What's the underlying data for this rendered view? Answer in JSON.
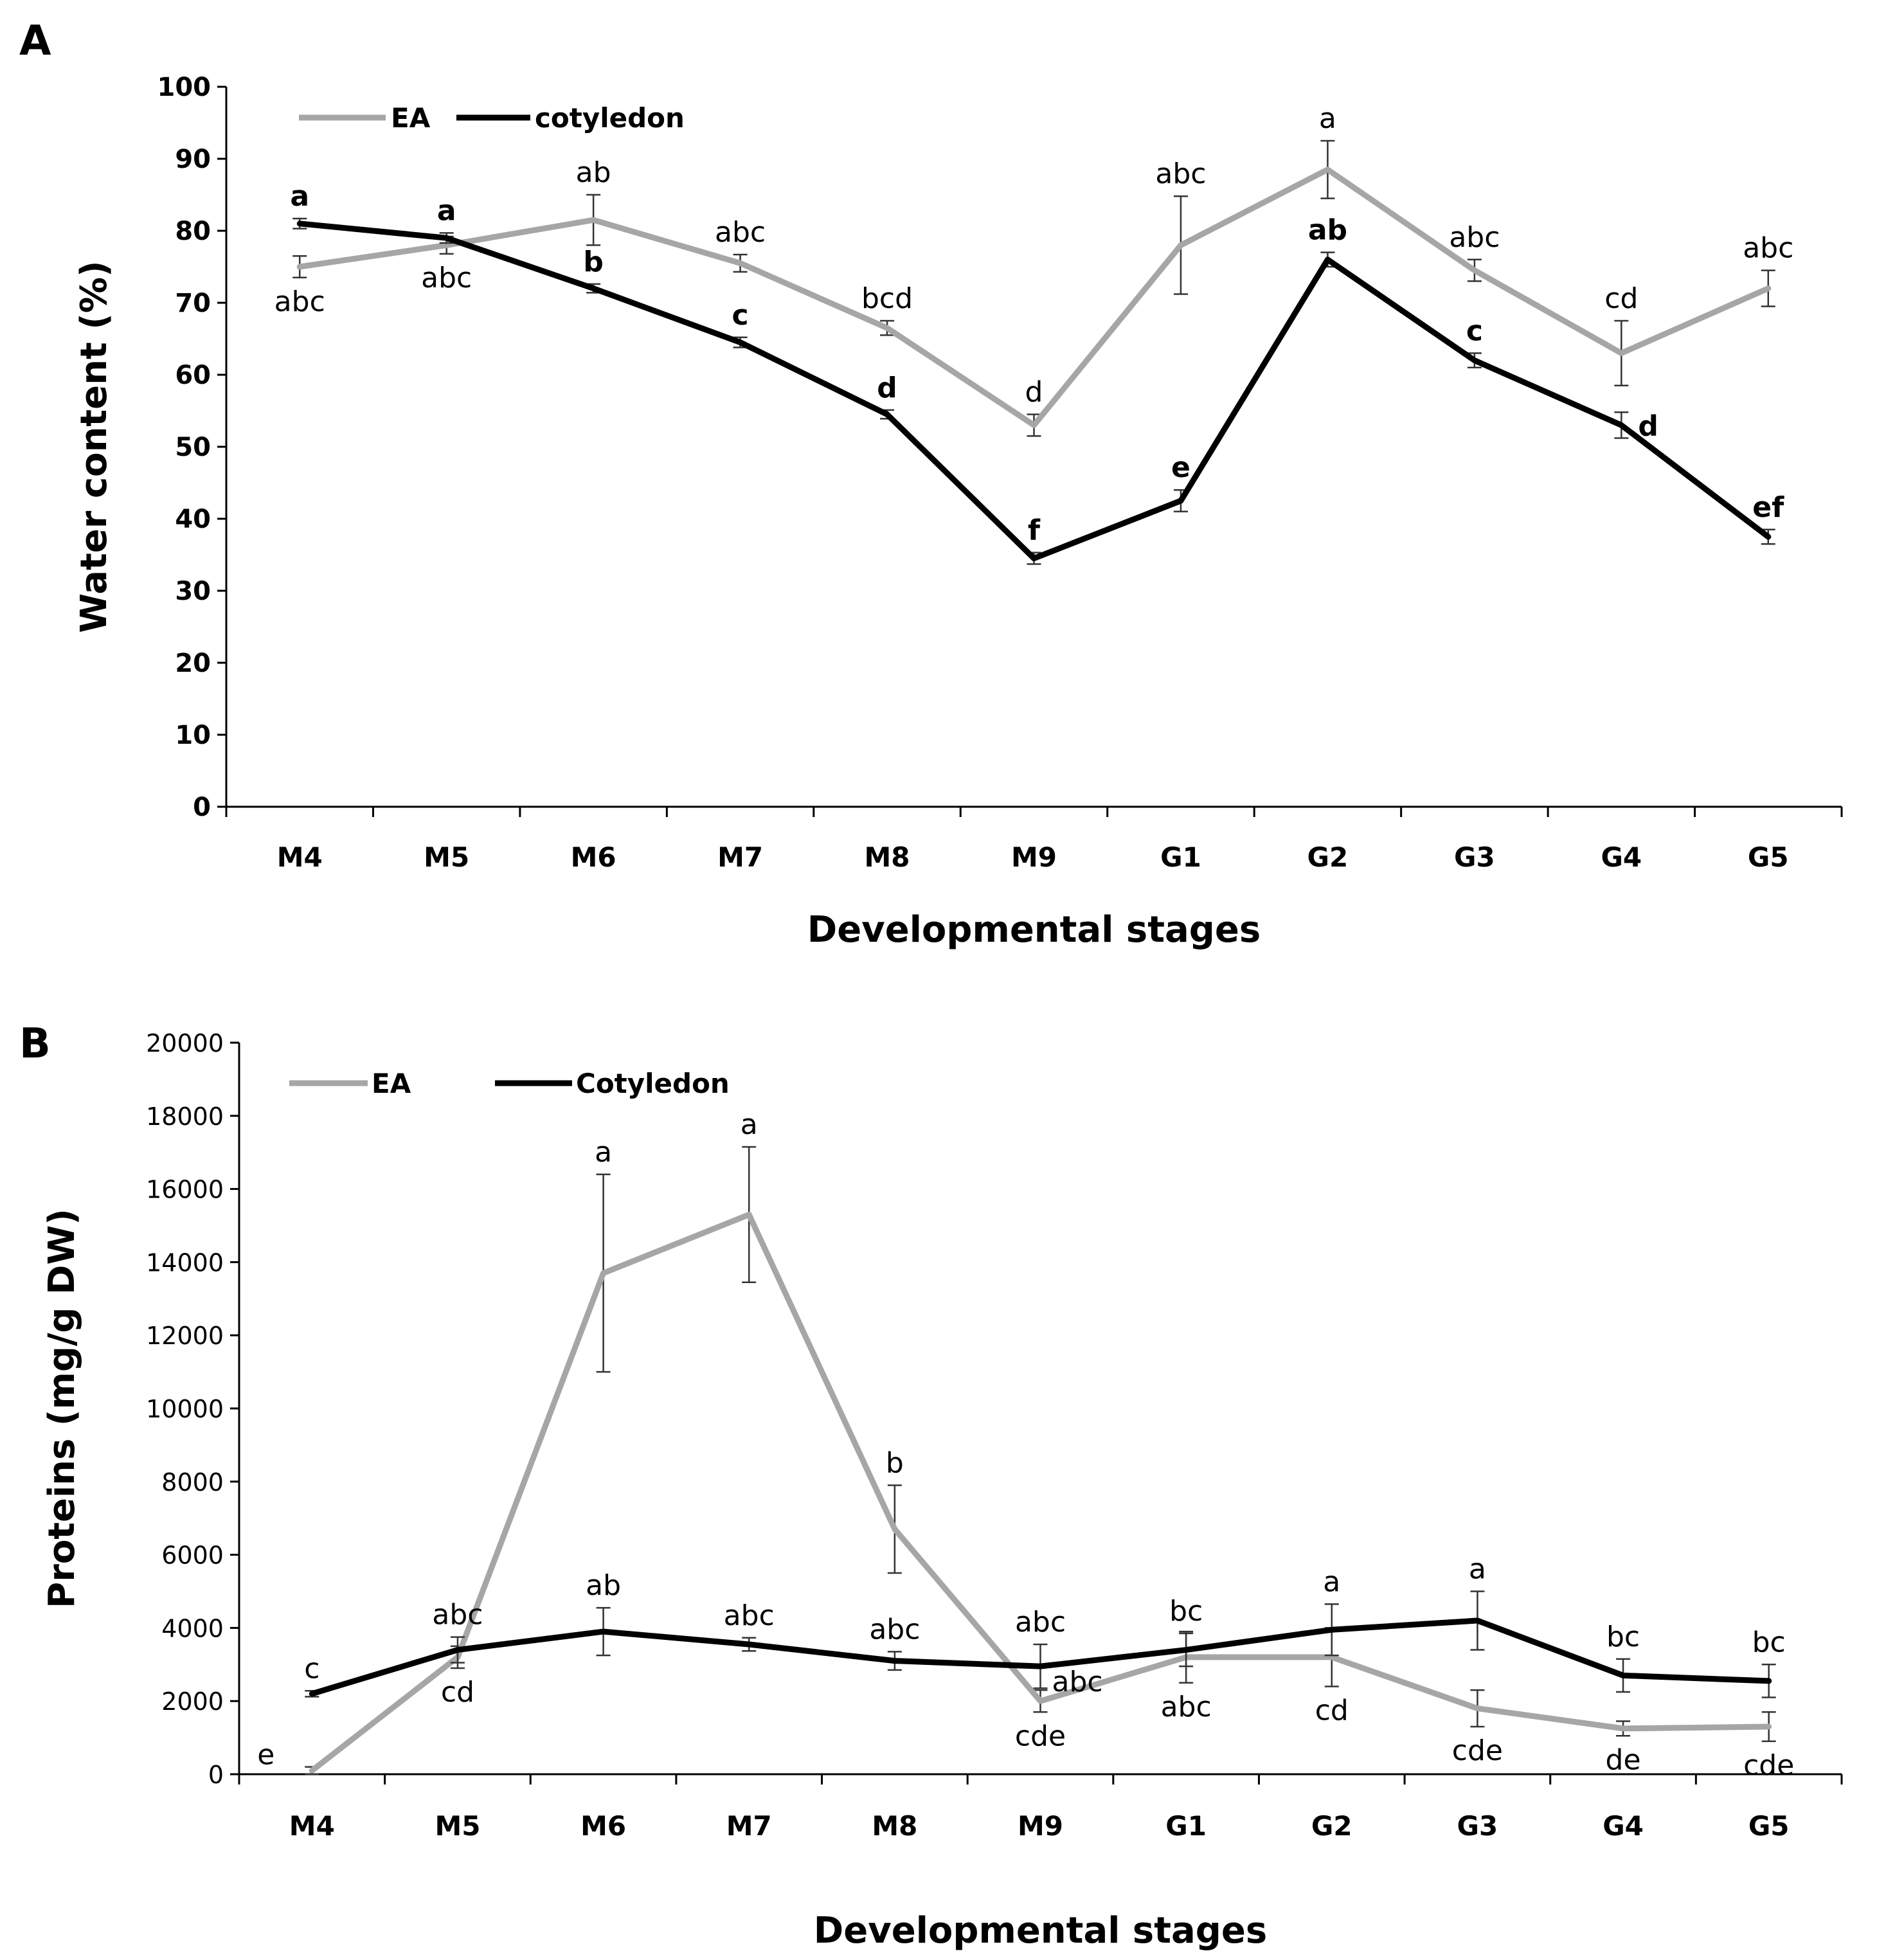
{
  "chart_data": [
    {
      "panel": "A",
      "type": "line",
      "xlabel": "Developmental stages",
      "ylabel": "Water content (%)",
      "ylim": [
        0,
        100
      ],
      "yticks": [
        0,
        10,
        20,
        30,
        40,
        50,
        60,
        70,
        80,
        90,
        100
      ],
      "categories": [
        "M4",
        "M5",
        "M6",
        "M7",
        "M8",
        "M9",
        "G1",
        "G2",
        "G3",
        "G4",
        "G5"
      ],
      "legend": "top-left",
      "grid": false,
      "series": [
        {
          "name": "EA",
          "color": "#a6a6a6",
          "values": [
            75,
            78,
            81.5,
            75.5,
            66.5,
            53,
            78,
            88.5,
            74.5,
            63,
            72
          ],
          "errors": [
            1.5,
            1.2,
            3.5,
            1.2,
            1.0,
            1.5,
            6.8,
            4.0,
            1.5,
            4.5,
            2.5
          ],
          "letters": [
            "abc",
            "abc",
            "ab",
            "abc",
            "bcd",
            "d",
            "abc",
            "a",
            "abc",
            "cd",
            "abc"
          ],
          "letter_pos": [
            "below",
            "below",
            "above",
            "above",
            "above",
            "above",
            "above",
            "above",
            "above",
            "above",
            "above"
          ]
        },
        {
          "name": "cotyledon",
          "color": "#000000",
          "values": [
            81,
            79,
            72,
            64.5,
            54.5,
            34.5,
            42.5,
            76,
            62,
            53,
            37.5
          ],
          "errors": [
            0.7,
            0.7,
            0.6,
            0.7,
            0.6,
            0.8,
            1.5,
            1.0,
            1.0,
            1.8,
            1.0
          ],
          "letters": [
            "a",
            "a",
            "b",
            "c",
            "d",
            "f",
            "e",
            "ab",
            "c",
            "d",
            "ef"
          ],
          "letter_pos": [
            "above",
            "above",
            "above",
            "above",
            "above",
            "above",
            "above",
            "above",
            "above",
            "right",
            "above"
          ]
        }
      ]
    },
    {
      "panel": "B",
      "type": "line",
      "xlabel": "Developmental stages",
      "ylabel": "Proteins (mg/g DW)",
      "ylim": [
        0,
        20000
      ],
      "yticks": [
        0,
        2000,
        4000,
        6000,
        8000,
        10000,
        12000,
        14000,
        16000,
        18000,
        20000
      ],
      "categories": [
        "M4",
        "M5",
        "M6",
        "M7",
        "M8",
        "M9",
        "G1",
        "G2",
        "G3",
        "G4",
        "G5"
      ],
      "legend": "top-left",
      "grid": false,
      "series": [
        {
          "name": "EA",
          "color": "#a6a6a6",
          "values": [
            100,
            3200,
            13700,
            15300,
            6700,
            2000,
            3200,
            3200,
            1800,
            1250,
            1300
          ],
          "errors": [
            100,
            300,
            2700,
            1850,
            1200,
            300,
            700,
            800,
            500,
            200,
            400
          ],
          "letters": [
            "e",
            "cd",
            "a",
            "a",
            "b",
            "cde",
            "abc",
            "cd",
            "cde",
            "de",
            "cde"
          ],
          "letter_pos": [
            "left",
            "below",
            "above",
            "above",
            "above",
            "below",
            "below",
            "below",
            "below",
            "below",
            "below"
          ]
        },
        {
          "name": "Cotyledon",
          "color": "#000000",
          "values": [
            2200,
            3400,
            3900,
            3550,
            3100,
            2950,
            3400,
            3950,
            4200,
            2700,
            2550
          ],
          "errors": [
            80,
            350,
            650,
            180,
            250,
            600,
            450,
            700,
            800,
            450,
            450
          ],
          "letters": [
            "c",
            "abc",
            "ab",
            "abc",
            "abc",
            "abc",
            "bc",
            "a",
            "a",
            "bc",
            "bc"
          ],
          "letter_pos": [
            "above",
            "above",
            "above",
            "above",
            "above",
            "above",
            "above",
            "above",
            "above",
            "above",
            "above"
          ]
        }
      ],
      "extra_letters": [
        {
          "text": "abc",
          "at": "M9",
          "value": 2550
        }
      ]
    }
  ]
}
